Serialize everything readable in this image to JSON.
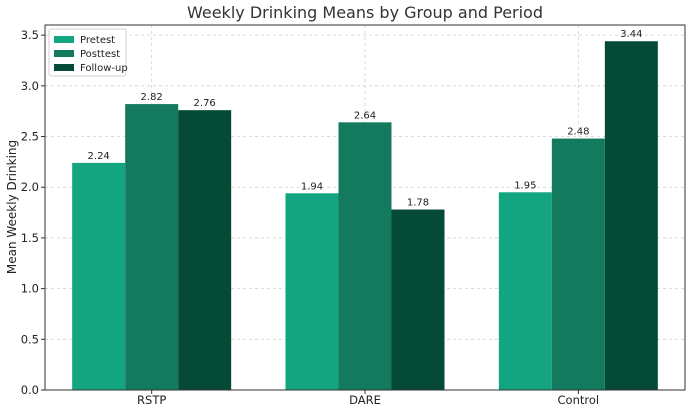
{
  "chart_data": {
    "type": "bar",
    "title": "Weekly Drinking Means by Group and Period",
    "xlabel": "",
    "ylabel": "Mean Weekly Drinking",
    "categories": [
      "RSTP",
      "DARE",
      "Control"
    ],
    "series": [
      {
        "name": "Pretest",
        "values": [
          2.24,
          1.94,
          1.95
        ],
        "color": "#12a57f"
      },
      {
        "name": "Posttest",
        "values": [
          2.82,
          2.64,
          2.48
        ],
        "color": "#147a5e"
      },
      {
        "name": "Follow-up",
        "values": [
          2.76,
          1.78,
          3.44
        ],
        "color": "#044a36"
      }
    ],
    "data_labels": [
      [
        "2.24",
        "2.82",
        "2.76"
      ],
      [
        "1.94",
        "2.64",
        "1.78"
      ],
      [
        "1.95",
        "2.48",
        "3.44"
      ]
    ],
    "ylim": [
      0,
      3.6
    ],
    "yticks": [
      "0.0",
      "0.5",
      "1.0",
      "1.5",
      "2.0",
      "2.5",
      "3.0",
      "3.5"
    ],
    "grid": true,
    "legend_position": "top-left"
  }
}
